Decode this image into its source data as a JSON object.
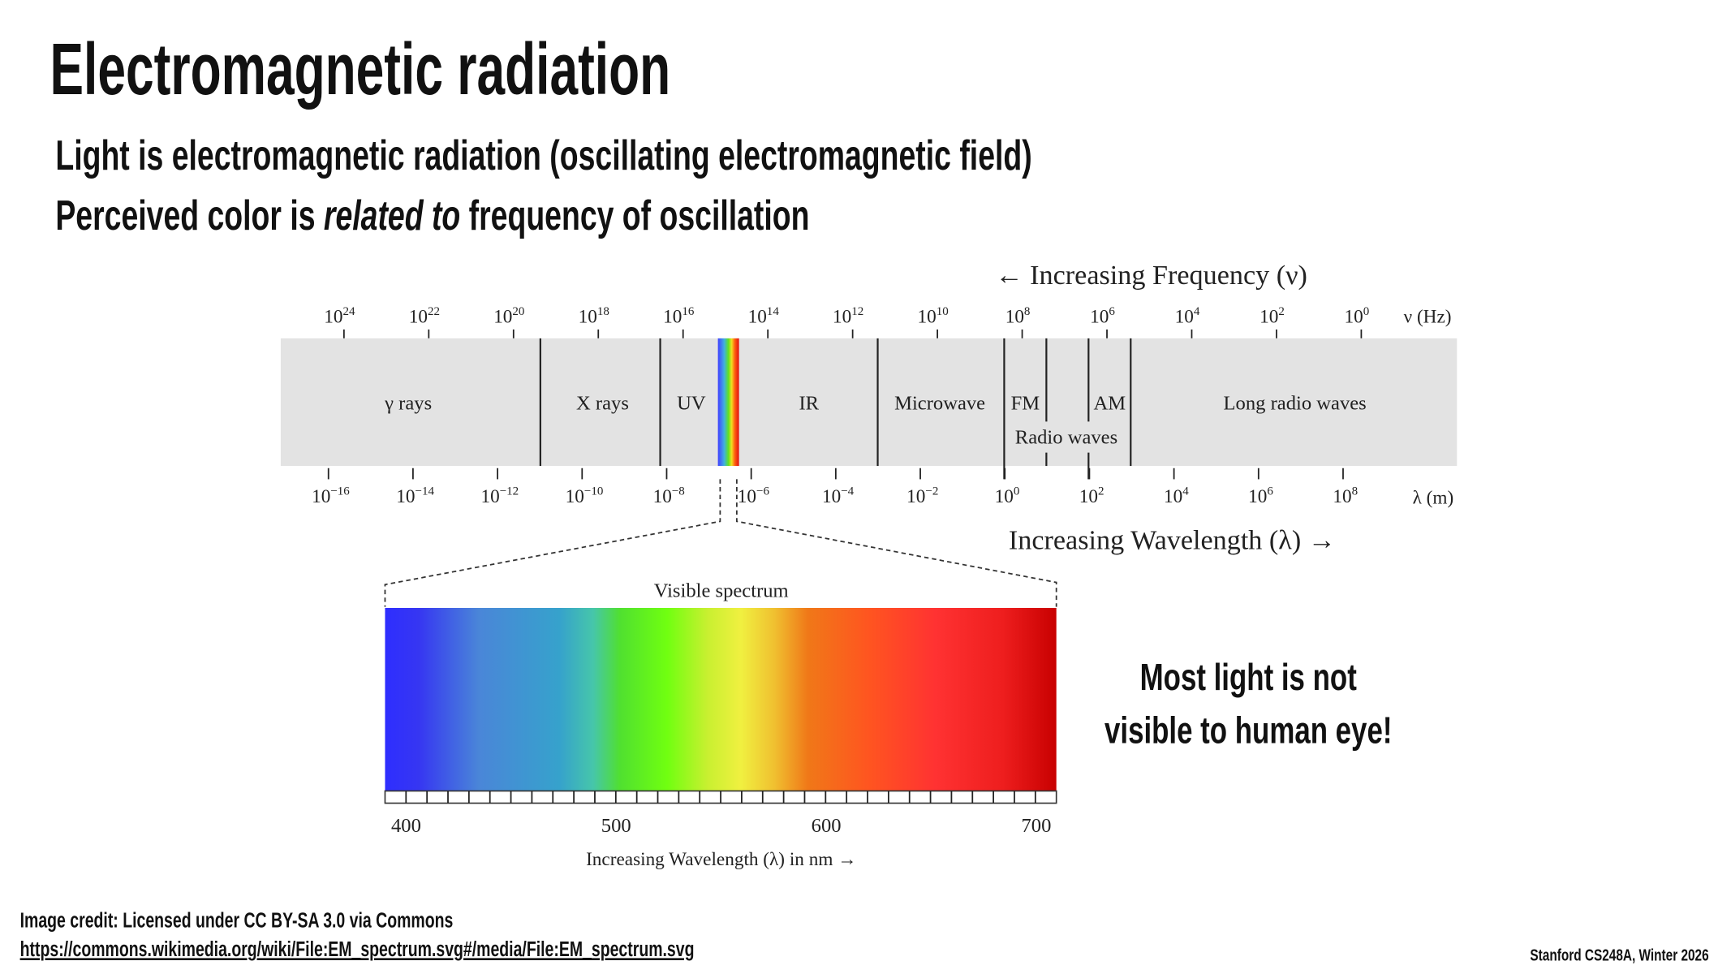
{
  "slide": {
    "title": "Electromagnetic radiation",
    "bullets": [
      "Light is electromagnetic radiation (oscillating electromagnetic field)",
      {
        "before": "Perceived color is ",
        "emphasis": "related to",
        "after": " frequency of oscillation"
      }
    ],
    "callout": [
      "Most light is not",
      "visible to human eye!"
    ],
    "credit": "Image credit: Licensed under CC BY-SA 3.0 via Commons",
    "credit_link": "https://commons.wikimedia.org/wiki/File:EM_spectrum.svg#/media/File:EM_spectrum.svg",
    "footer": "Stanford CS248A, Winter 2026"
  },
  "diagram": {
    "frequency_title": "← Increasing Frequency (ν)",
    "frequency_unit": "ν (Hz)",
    "power_base": "10",
    "frequency_exponents": [
      "24",
      "22",
      "20",
      "18",
      "16",
      "14",
      "12",
      "10",
      "8",
      "6",
      "4",
      "2",
      "0"
    ],
    "wavelength_exponents": [
      "−16",
      "−14",
      "−12",
      "−10",
      "−8",
      "−6",
      "−4",
      "−2",
      "0",
      "2",
      "4",
      "6",
      "8"
    ],
    "wavelength_unit": "λ (m)",
    "wavelength_title": "Increasing Wavelength (λ) →",
    "regions": {
      "gamma": "γ rays",
      "xray": "X rays",
      "uv": "UV",
      "ir": "IR",
      "microwave": "Microwave",
      "fm": "FM",
      "am": "AM",
      "radio": "Radio waves",
      "long_radio": "Long radio waves"
    },
    "visible_title": "Visible spectrum",
    "visible_ticks": [
      "400",
      "500",
      "600",
      "700"
    ],
    "visible_axis": "Increasing Wavelength (λ) in nm →"
  }
}
